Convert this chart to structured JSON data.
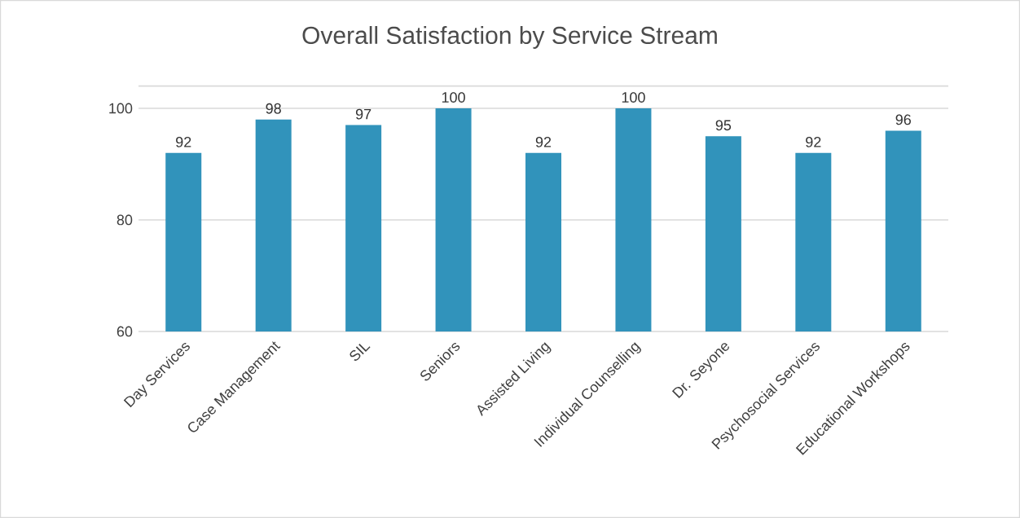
{
  "chart_data": {
    "type": "bar",
    "title": "Overall Satisfaction by Service Stream",
    "categories": [
      "Day Services",
      "Case Management",
      "SIL",
      "Seniors",
      "Assisted Living",
      "Individual Counselling",
      "Dr. Seyone",
      "Psychosocial Services",
      "Educational Workshops"
    ],
    "values": [
      92,
      98,
      97,
      100,
      92,
      100,
      95,
      92,
      96
    ],
    "color": "#3193bb",
    "ylim": [
      60,
      104
    ],
    "yticks": [
      60,
      80,
      100
    ],
    "grid": "y",
    "data_labels": true
  }
}
